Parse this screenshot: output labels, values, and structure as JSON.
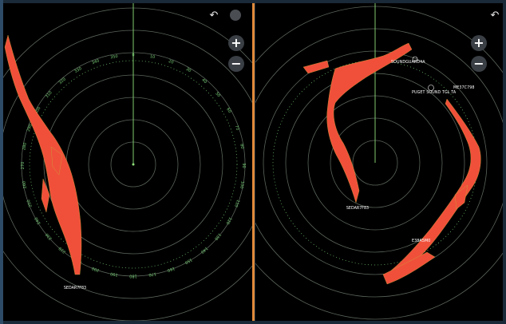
{
  "left_radar": {
    "target_label": "SEDAR7F83",
    "bearings": [
      "350",
      "0",
      "10",
      "20",
      "30",
      "40",
      "50",
      "60",
      "70",
      "80",
      "90",
      "100",
      "110",
      "120",
      "130",
      "140",
      "150",
      "160",
      "170",
      "180",
      "190",
      "200",
      "210",
      "220",
      "230",
      "240",
      "250",
      "260",
      "270",
      "280",
      "290",
      "300",
      "310",
      "320",
      "330",
      "340"
    ],
    "controls": {
      "zoom_in": "+",
      "zoom_out": "−",
      "undo": "↶"
    }
  },
  "right_radar": {
    "target_label": "SEDAR7F83",
    "labels": {
      "sound_label": "SOUNDGUARD4A",
      "puget_sound": "PUGET SOUND TGL TA",
      "marker_label": "ME37C798",
      "bottom_label": "E38A5M0"
    },
    "controls": {
      "zoom_in": "+",
      "zoom_out": "−",
      "undo": "↶"
    }
  },
  "colors": {
    "echo": "#f0503a",
    "ring": "#6d7a6d",
    "heading": "#8ee07a",
    "scale": "#7ad27a"
  }
}
